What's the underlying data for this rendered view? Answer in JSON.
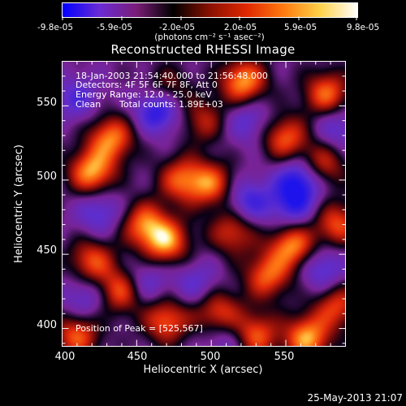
{
  "colorbar": {
    "ticks": [
      "-9.8e-05",
      "-5.9e-05",
      "-2.0e-05",
      "2.0e-05",
      "5.9e-05",
      "9.8e-05"
    ],
    "units": "(photons cm⁻² s⁻¹ asec⁻²)",
    "stops": [
      "#0000ff",
      "#6a2bd6",
      "#7a1d78",
      "#000000",
      "#8a1000",
      "#e02800",
      "#ff7a10",
      "#ffd24a",
      "#ffffff"
    ]
  },
  "plot": {
    "title": "Reconstructed RHESSI Image",
    "xlabel": "Heliocentric X (arcsec)",
    "ylabel": "Heliocentric Y (arcsec)",
    "x_ticks": [
      "400",
      "450",
      "500",
      "550"
    ],
    "y_ticks": [
      "400",
      "450",
      "500",
      "550"
    ],
    "info_lines": [
      "18-Jan-2003 21:54:40.000 to 21:56:48.000",
      "Detectors: 4F 5F 6F 7F 8F, Att 0",
      "Energy Range: 12.0 - 25.0 keV",
      "Clean",
      "Total counts: 1.89E+03"
    ],
    "peak_label": "Position of Peak = [525,567]"
  },
  "footer": {
    "timestamp": "25-May-2013 21:07"
  },
  "chart_data": {
    "type": "heatmap",
    "title": "Reconstructed RHESSI Image",
    "xlabel": "Heliocentric X (arcsec)",
    "ylabel": "Heliocentric Y (arcsec)",
    "xlim": [
      400,
      590
    ],
    "ylim": [
      388,
      580
    ],
    "x_ticks": [
      400,
      450,
      500,
      550
    ],
    "y_ticks": [
      400,
      450,
      500,
      550
    ],
    "colorbar_range": [
      -9.8e-05,
      9.8e-05
    ],
    "colorbar_ticks": [
      -9.8e-05,
      -5.9e-05,
      -2e-05,
      2e-05,
      5.9e-05,
      9.8e-05
    ],
    "peak": [
      525,
      567
    ],
    "blobs": [
      {
        "x": 522,
        "y": 566,
        "v": 1.0
      },
      {
        "x": 578,
        "y": 558,
        "v": 0.85
      },
      {
        "x": 470,
        "y": 458,
        "v": 0.95
      },
      {
        "x": 455,
        "y": 470,
        "v": 0.8
      },
      {
        "x": 515,
        "y": 465,
        "v": 0.7
      },
      {
        "x": 480,
        "y": 500,
        "v": 0.75
      },
      {
        "x": 500,
        "y": 497,
        "v": 0.8
      },
      {
        "x": 433,
        "y": 528,
        "v": 0.9
      },
      {
        "x": 420,
        "y": 505,
        "v": 1.0
      },
      {
        "x": 550,
        "y": 528,
        "v": 0.8
      },
      {
        "x": 575,
        "y": 510,
        "v": 0.7
      },
      {
        "x": 555,
        "y": 455,
        "v": 0.95
      },
      {
        "x": 538,
        "y": 435,
        "v": 0.8
      },
      {
        "x": 420,
        "y": 445,
        "v": 0.75
      },
      {
        "x": 440,
        "y": 425,
        "v": 0.85
      },
      {
        "x": 470,
        "y": 405,
        "v": 0.8
      },
      {
        "x": 505,
        "y": 410,
        "v": 0.75
      },
      {
        "x": 530,
        "y": 395,
        "v": 0.8
      },
      {
        "x": 565,
        "y": 393,
        "v": 1.0
      },
      {
        "x": 585,
        "y": 415,
        "v": 0.7
      },
      {
        "x": 585,
        "y": 470,
        "v": 0.75
      },
      {
        "x": 410,
        "y": 395,
        "v": 0.8
      },
      {
        "x": 470,
        "y": 560,
        "v": 0.6
      },
      {
        "x": 495,
        "y": 540,
        "v": 0.55
      },
      {
        "x": 465,
        "y": 548,
        "v": -0.9
      },
      {
        "x": 525,
        "y": 540,
        "v": -0.45
      },
      {
        "x": 560,
        "y": 500,
        "v": -0.8
      },
      {
        "x": 525,
        "y": 485,
        "v": -0.6
      },
      {
        "x": 555,
        "y": 482,
        "v": -0.55
      },
      {
        "x": 425,
        "y": 478,
        "v": -0.5
      },
      {
        "x": 410,
        "y": 555,
        "v": -0.45
      },
      {
        "x": 455,
        "y": 430,
        "v": -0.5
      },
      {
        "x": 490,
        "y": 430,
        "v": -0.4
      },
      {
        "x": 575,
        "y": 440,
        "v": -0.55
      },
      {
        "x": 510,
        "y": 392,
        "v": -0.4
      },
      {
        "x": 415,
        "y": 420,
        "v": -0.45
      },
      {
        "x": 585,
        "y": 535,
        "v": -0.45
      }
    ]
  }
}
